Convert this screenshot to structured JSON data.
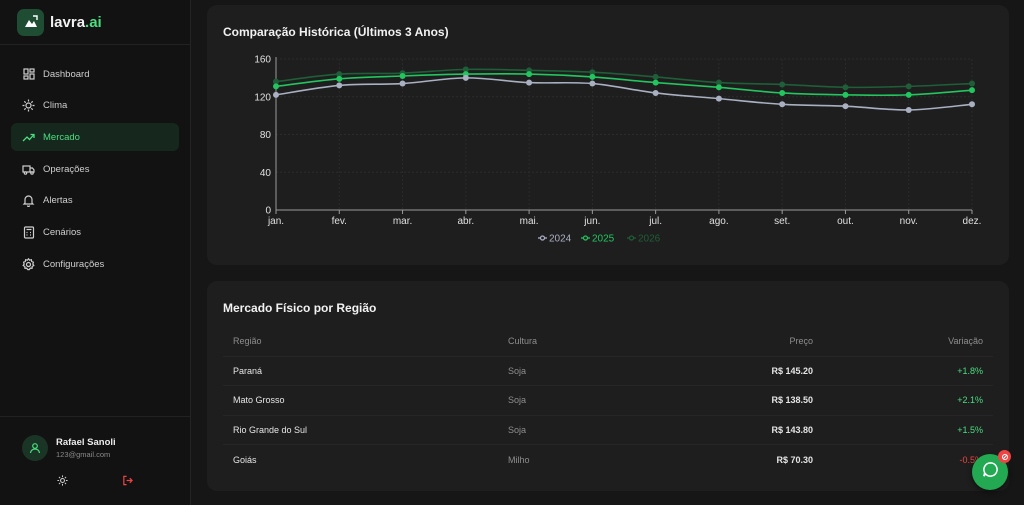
{
  "brand": {
    "name": "lavra",
    "suffix": ".ai"
  },
  "nav": [
    {
      "label": "Dashboard",
      "icon": "dashboard-icon"
    },
    {
      "label": "Clima",
      "icon": "sun-icon"
    },
    {
      "label": "Mercado",
      "icon": "trending-up-icon",
      "active": true
    },
    {
      "label": "Operações",
      "icon": "truck-icon"
    },
    {
      "label": "Alertas",
      "icon": "bell-icon"
    },
    {
      "label": "Cenários",
      "icon": "calculator-icon"
    },
    {
      "label": "Configurações",
      "icon": "gear-icon"
    }
  ],
  "user": {
    "name": "Rafael Sanoli",
    "email": "123@gmail.com"
  },
  "history_card": {
    "title": "Comparação Histórica (Últimos 3 Anos)"
  },
  "chart_data": {
    "type": "line",
    "categories": [
      "jan.",
      "fev.",
      "mar.",
      "abr.",
      "mai.",
      "jun.",
      "jul.",
      "ago.",
      "set.",
      "out.",
      "nov.",
      "dez."
    ],
    "ylim": [
      0,
      160
    ],
    "yticks": [
      "0",
      "40",
      "80",
      "120",
      "160"
    ],
    "series": [
      {
        "name": "2024",
        "color": "#a9b0c2",
        "values": [
          122,
          132,
          134,
          140,
          135,
          134,
          124,
          118,
          112,
          110,
          106,
          112
        ]
      },
      {
        "name": "2025",
        "color": "#22c55e",
        "values": [
          131,
          139,
          142,
          144,
          144,
          141,
          135,
          130,
          124,
          122,
          122,
          127
        ]
      },
      {
        "name": "2026",
        "color": "#1f5e38",
        "values": [
          136,
          144,
          145,
          149,
          148,
          146,
          141,
          135,
          133,
          130,
          131,
          134
        ]
      }
    ],
    "legend": "bottom-center",
    "grid": true
  },
  "market_card": {
    "title": "Mercado Físico por Região",
    "columns": {
      "region": "Região",
      "crop": "Cultura",
      "price": "Preço",
      "change": "Variação"
    },
    "rows": [
      {
        "region": "Paraná",
        "crop": "Soja",
        "price": "R$ 145.20",
        "change": "+1.8%",
        "trend": "up"
      },
      {
        "region": "Mato Grosso",
        "crop": "Soja",
        "price": "R$ 138.50",
        "change": "+2.1%",
        "trend": "up"
      },
      {
        "region": "Rio Grande do Sul",
        "crop": "Soja",
        "price": "R$ 143.80",
        "change": "+1.5%",
        "trend": "up"
      },
      {
        "region": "Goiás",
        "crop": "Milho",
        "price": "R$ 70.30",
        "change": "-0.5%",
        "trend": "down"
      }
    ]
  },
  "colors": {
    "accent": "#4ade80",
    "negative": "#ef4444"
  }
}
